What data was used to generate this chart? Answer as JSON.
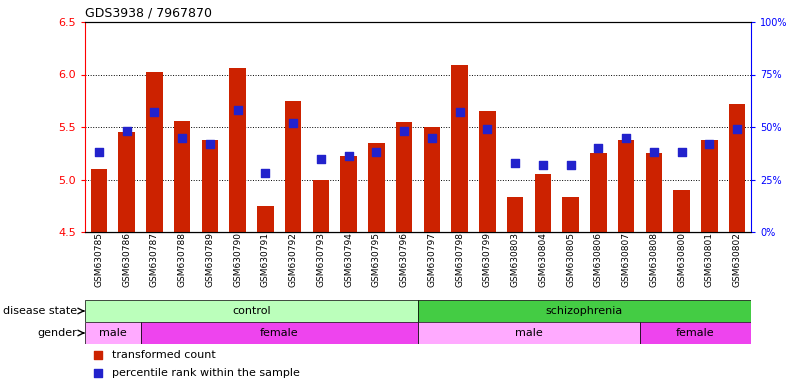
{
  "title": "GDS3938 / 7967870",
  "samples": [
    "GSM630785",
    "GSM630786",
    "GSM630787",
    "GSM630788",
    "GSM630789",
    "GSM630790",
    "GSM630791",
    "GSM630792",
    "GSM630793",
    "GSM630794",
    "GSM630795",
    "GSM630796",
    "GSM630797",
    "GSM630798",
    "GSM630799",
    "GSM630803",
    "GSM630804",
    "GSM630805",
    "GSM630806",
    "GSM630807",
    "GSM630808",
    "GSM630800",
    "GSM630801",
    "GSM630802"
  ],
  "bar_values": [
    5.1,
    5.45,
    6.02,
    5.56,
    5.38,
    6.06,
    4.75,
    5.75,
    5.0,
    5.22,
    5.35,
    5.55,
    5.5,
    6.09,
    5.65,
    4.83,
    5.05,
    4.83,
    5.25,
    5.38,
    5.25,
    4.9,
    5.38,
    5.72
  ],
  "percentile_values": [
    38,
    48,
    57,
    45,
    42,
    58,
    28,
    52,
    35,
    36,
    38,
    48,
    45,
    57,
    49,
    33,
    32,
    32,
    40,
    45,
    38,
    38,
    42,
    49
  ],
  "ylim_left": [
    4.5,
    6.5
  ],
  "ylim_right": [
    0,
    100
  ],
  "bar_color": "#cc2200",
  "dot_color": "#2222cc",
  "bar_width": 0.6,
  "dot_size": 40,
  "disease_state": [
    {
      "label": "control",
      "start": 0,
      "end": 11,
      "color": "#bbffbb"
    },
    {
      "label": "schizophrenia",
      "start": 12,
      "end": 23,
      "color": "#44cc44"
    }
  ],
  "gender": [
    {
      "label": "male",
      "start": 0,
      "end": 1,
      "color": "#ffaaff"
    },
    {
      "label": "female",
      "start": 2,
      "end": 11,
      "color": "#ee44ee"
    },
    {
      "label": "male",
      "start": 12,
      "end": 19,
      "color": "#ffaaff"
    },
    {
      "label": "female",
      "start": 20,
      "end": 23,
      "color": "#ee44ee"
    }
  ],
  "yticks_left": [
    4.5,
    5.0,
    5.5,
    6.0,
    6.5
  ],
  "yticks_right": [
    0,
    25,
    50,
    75,
    100
  ],
  "dotted_lines": [
    5.0,
    5.5,
    6.0
  ],
  "legend_bar_label": "transformed count",
  "legend_dot_label": "percentile rank within the sample",
  "disease_label": "disease state",
  "gender_label": "gender"
}
